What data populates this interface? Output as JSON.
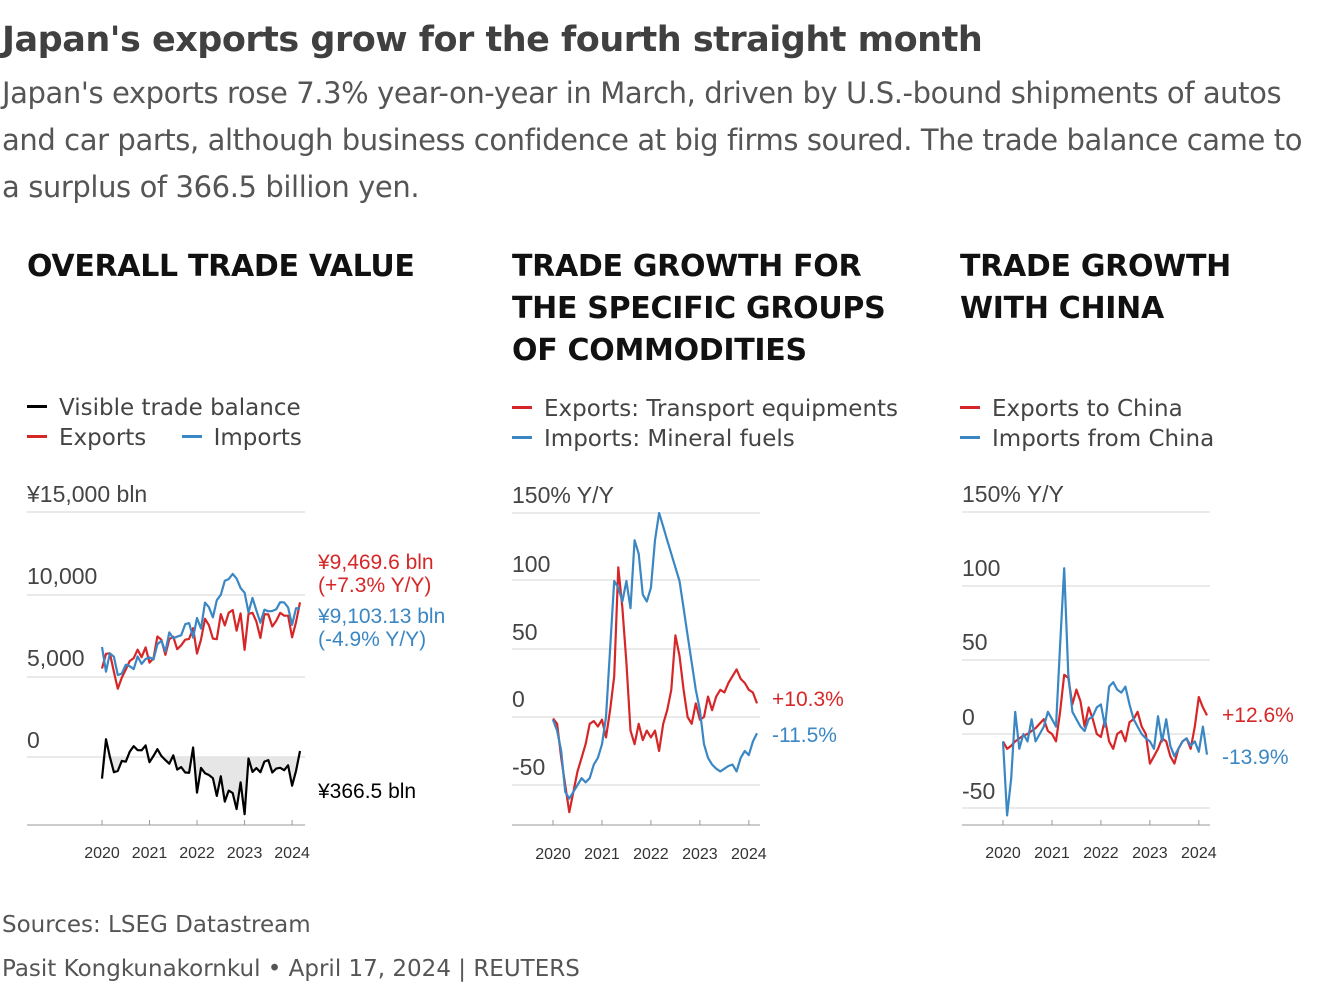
{
  "header": {
    "title": "Japan's exports grow for the fourth straight month",
    "subtitle": "Japan's exports rose 7.3% year-on-year in March, driven by U.S.-bound shipments of autos and car parts, although business confidence at big firms soured. The trade balance came to a surplus of 366.5 billion yen."
  },
  "colors": {
    "exports": "#d62728",
    "imports": "#3b87c3",
    "balance": "#000000",
    "grid": "#dddddd",
    "fill": "#e6e6e6"
  },
  "panels": [
    {
      "title": "OVERALL TRADE VALUE",
      "legend": [
        {
          "label": "Visible trade balance",
          "color": "#000000"
        },
        {
          "label": "Exports",
          "color": "#d62728"
        },
        {
          "label": "Imports",
          "color": "#3b87c3"
        }
      ]
    },
    {
      "title": "TRADE GROWTH FOR THE SPECIFIC GROUPS OF COMMODITIES",
      "legend": [
        {
          "label": "Exports: Transport equipments",
          "color": "#d62728"
        },
        {
          "label": "Imports: Mineral fuels",
          "color": "#3b87c3"
        }
      ]
    },
    {
      "title": "TRADE GROWTH WITH CHINA",
      "legend": [
        {
          "label": "Exports to China",
          "color": "#d62728"
        },
        {
          "label": "Imports from China",
          "color": "#3b87c3"
        }
      ]
    }
  ],
  "chart_data": [
    {
      "type": "line",
      "title": "OVERALL TRADE VALUE",
      "ylabel": "¥15,000 bln",
      "yticks": [
        "¥15,000 bln",
        "10,000",
        "5,000",
        "0"
      ],
      "yticks_values": [
        15000,
        10000,
        5000,
        0
      ],
      "ylim": [
        -4000,
        15000
      ],
      "xticks": [
        "2020",
        "2021",
        "2022",
        "2023",
        "2024"
      ],
      "x_start": "2020-01",
      "x_end": "2024-03",
      "series": [
        {
          "name": "Exports",
          "color": "#d62728",
          "values": [
            5420,
            6320,
            6350,
            5210,
            4180,
            4860,
            5360,
            5880,
            6050,
            6570,
            6110,
            6710,
            5780,
            6040,
            7380,
            7180,
            6260,
            7220,
            7360,
            6600,
            6840,
            7180,
            7230,
            7890,
            6330,
            7190,
            8460,
            8070,
            7250,
            7220,
            8750,
            8060,
            8830,
            9000,
            7730,
            8790,
            6560,
            8760,
            8830,
            8290,
            7290,
            8740,
            8730,
            7990,
            8330,
            8820,
            8650,
            8650,
            7330,
            8250,
            9470
          ]
        },
        {
          "name": "Imports",
          "color": "#3b87c3",
          "values": [
            6740,
            5220,
            6350,
            6140,
            5020,
            5100,
            5650,
            5560,
            5380,
            6160,
            5700,
            6000,
            6100,
            5970,
            6900,
            7120,
            6450,
            7630,
            7260,
            7370,
            7460,
            8130,
            8200,
            7310,
            8510,
            7860,
            9450,
            9170,
            8550,
            9600,
            9930,
            10790,
            10890,
            11210,
            10920,
            10340,
            10060,
            8850,
            9740,
            8970,
            8220,
            9020,
            8920,
            8940,
            9040,
            9480,
            9460,
            9160,
            8090,
            9110,
            9100
          ]
        },
        {
          "name": "Visible trade balance",
          "color": "#000000",
          "values": [
            -1320,
            1090,
            0,
            -930,
            -850,
            -240,
            -290,
            320,
            670,
            420,
            410,
            710,
            -320,
            70,
            480,
            60,
            -190,
            -410,
            100,
            -770,
            -620,
            -950,
            -970,
            580,
            -2180,
            -670,
            -990,
            -1100,
            -1300,
            -2380,
            -1180,
            -2730,
            -2060,
            -2210,
            -3190,
            -1550,
            -3500,
            -90,
            -910,
            -680,
            -930,
            -280,
            -190,
            -950,
            -710,
            -660,
            -810,
            -510,
            -1760,
            -860,
            367
          ]
        }
      ],
      "annotations": [
        {
          "label": "¥9,469.6 bln",
          "sublabel": "(+7.3% Y/Y)",
          "color": "#d62728"
        },
        {
          "label": "¥9,103.13 bln",
          "sublabel": "(-4.9% Y/Y)",
          "color": "#3b87c3"
        },
        {
          "label": "¥366.5 bln",
          "color": "#000000"
        }
      ]
    },
    {
      "type": "line",
      "title": "TRADE GROWTH FOR THE SPECIFIC GROUPS OF COMMODITIES",
      "ylabel": "150% Y/Y",
      "yticks": [
        "150% Y/Y",
        "100",
        "50",
        "0",
        "-50"
      ],
      "yticks_values": [
        150,
        100,
        50,
        0,
        -50
      ],
      "ylim": [
        -80,
        150
      ],
      "xticks": [
        "2020",
        "2021",
        "2022",
        "2023",
        "2024"
      ],
      "x_start": "2020-01",
      "x_end": "2024-03",
      "series": [
        {
          "name": "Exports: Transport equipments",
          "color": "#d62728",
          "values": [
            -1,
            -5,
            -30,
            -50,
            -70,
            -55,
            -40,
            -30,
            -20,
            -5,
            -3,
            -7,
            -2,
            -15,
            5,
            30,
            110,
            80,
            40,
            -10,
            -20,
            -5,
            -17,
            -10,
            -15,
            -10,
            -25,
            -5,
            5,
            20,
            60,
            45,
            20,
            0,
            -5,
            10,
            -2,
            0,
            15,
            5,
            15,
            20,
            18,
            25,
            30,
            35,
            28,
            25,
            20,
            18,
            10
          ]
        },
        {
          "name": "Imports: Mineral fuels",
          "color": "#3b87c3",
          "values": [
            -2,
            -10,
            -25,
            -55,
            -60,
            -55,
            -50,
            -45,
            -48,
            -45,
            -35,
            -30,
            -20,
            0,
            50,
            100,
            95,
            85,
            100,
            80,
            130,
            120,
            90,
            85,
            95,
            130,
            150,
            140,
            130,
            120,
            110,
            100,
            80,
            60,
            40,
            20,
            5,
            -20,
            -30,
            -35,
            -38,
            -40,
            -38,
            -36,
            -35,
            -40,
            -30,
            -25,
            -28,
            -18,
            -12
          ]
        }
      ],
      "annotations": [
        {
          "label": "+10.3%",
          "color": "#d62728"
        },
        {
          "label": "-11.5%",
          "color": "#3b87c3"
        }
      ]
    },
    {
      "type": "line",
      "title": "TRADE GROWTH WITH CHINA",
      "ylabel": "150% Y/Y",
      "yticks": [
        "150% Y/Y",
        "100",
        "50",
        "0",
        "-50"
      ],
      "yticks_values": [
        150,
        100,
        50,
        0,
        -50
      ],
      "ylim": [
        -65,
        150
      ],
      "xticks": [
        "2020",
        "2021",
        "2022",
        "2023",
        "2024"
      ],
      "x_start": "2020-01",
      "x_end": "2024-03",
      "series": [
        {
          "name": "Exports to China",
          "color": "#d62728",
          "values": [
            -5,
            -10,
            -8,
            -5,
            -3,
            -1,
            0,
            2,
            4,
            7,
            10,
            2,
            0,
            -5,
            15,
            40,
            38,
            20,
            30,
            22,
            5,
            18,
            10,
            0,
            -2,
            10,
            -5,
            -10,
            0,
            2,
            -5,
            8,
            10,
            15,
            5,
            0,
            -20,
            -15,
            -10,
            -3,
            -5,
            -15,
            -20,
            -10,
            -5,
            -3,
            -10,
            5,
            25,
            18,
            12.6
          ]
        },
        {
          "name": "Imports from China",
          "color": "#3b87c3",
          "values": [
            -5,
            -55,
            -30,
            15,
            -10,
            0,
            -5,
            10,
            -5,
            0,
            5,
            15,
            10,
            5,
            60,
            112,
            40,
            15,
            10,
            5,
            2,
            10,
            12,
            18,
            20,
            5,
            32,
            35,
            30,
            28,
            32,
            20,
            10,
            5,
            0,
            -3,
            -5,
            -10,
            12,
            -5,
            10,
            -8,
            -15,
            -10,
            -5,
            -3,
            -8,
            -5,
            -12,
            5,
            -13.9
          ]
        }
      ],
      "annotations": [
        {
          "label": "+12.6%",
          "color": "#d62728"
        },
        {
          "label": "-13.9%",
          "color": "#3b87c3"
        }
      ]
    }
  ],
  "footer": {
    "sources": "Sources: LSEG Datastream",
    "credit": "Pasit Kongkunakornkul • April 17, 2024 | REUTERS"
  }
}
